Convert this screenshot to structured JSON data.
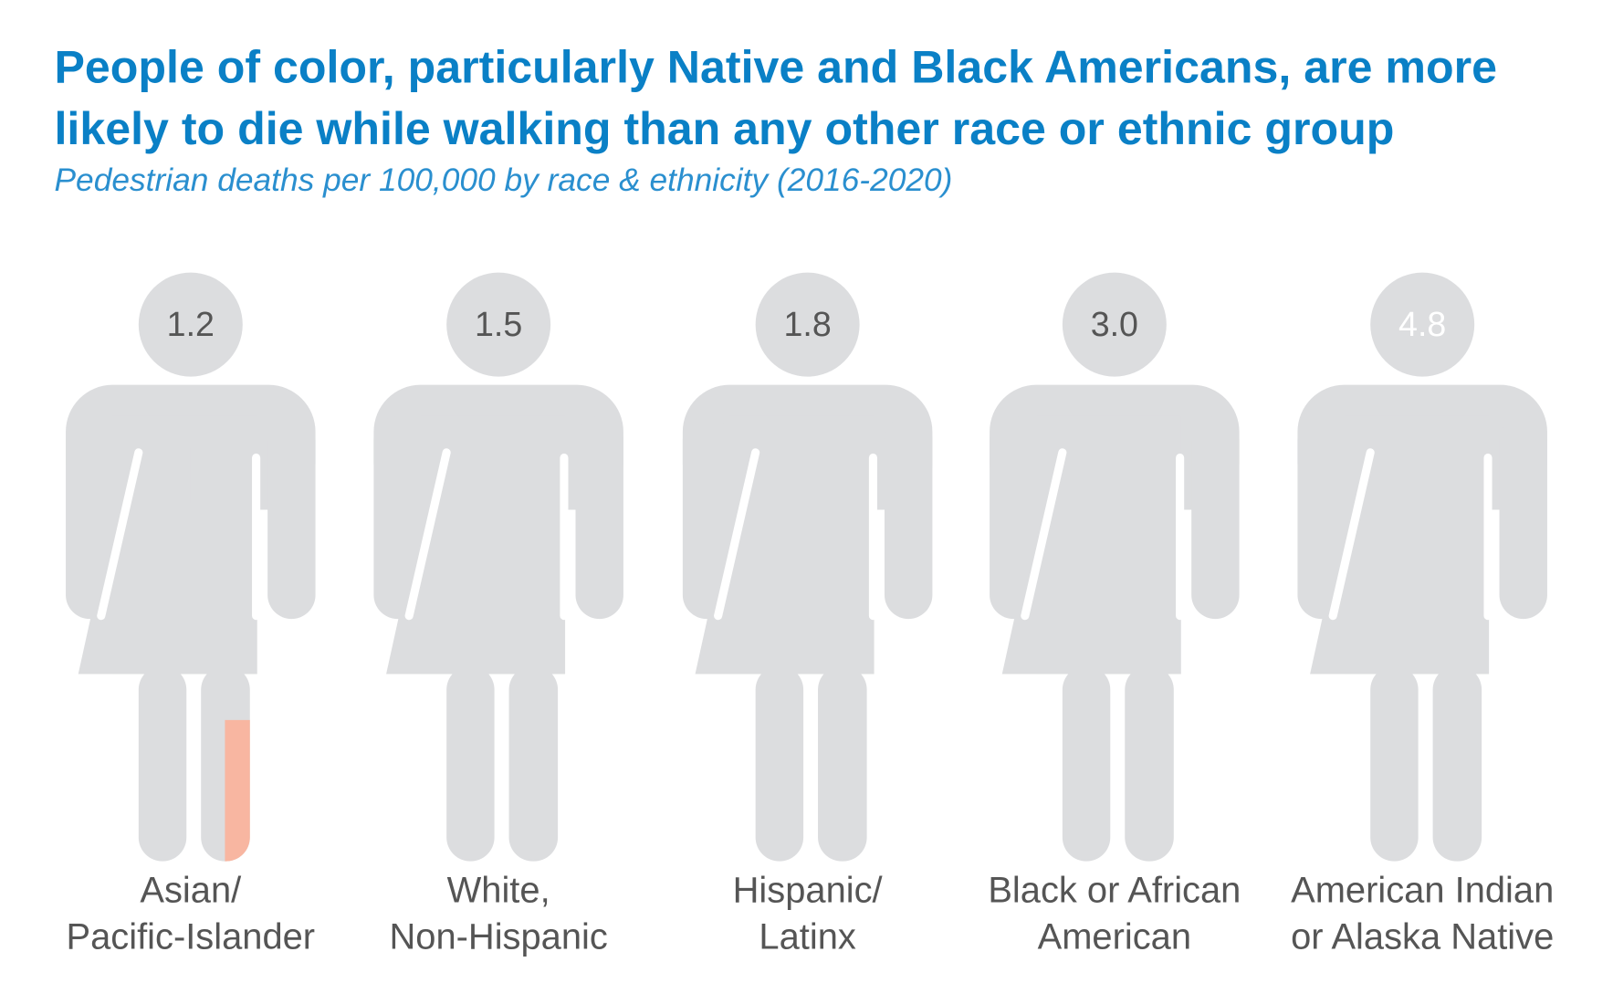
{
  "chart_data": {
    "type": "pictograph",
    "title": [
      "People of color, particularly Native and Black Americans, are more",
      "likely to die while walking than any other race or ethnic group"
    ],
    "subtitle": "Pedestrian deaths per 100,000 by race & ethnicity (2016-2020)",
    "categories": [
      [
        "Asian/",
        "Pacific-Islander"
      ],
      [
        "White,",
        "Non-Hispanic"
      ],
      [
        "Hispanic/",
        "Latinx"
      ],
      [
        "Black or African",
        "American"
      ],
      [
        "American Indian",
        "or Alaska Native"
      ]
    ],
    "values": [
      1.2,
      1.5,
      1.8,
      3.0,
      4.8
    ],
    "value_labels": [
      "1.2",
      "1.5",
      "1.8",
      "3.0",
      "4.8"
    ],
    "colors": [
      "#f8b6a1",
      "#f8b6a1",
      "#f8b6a1",
      "#ef5134",
      "#ef5134"
    ],
    "empty_color": "#dcdddf",
    "ylim": [
      0,
      5
    ]
  }
}
